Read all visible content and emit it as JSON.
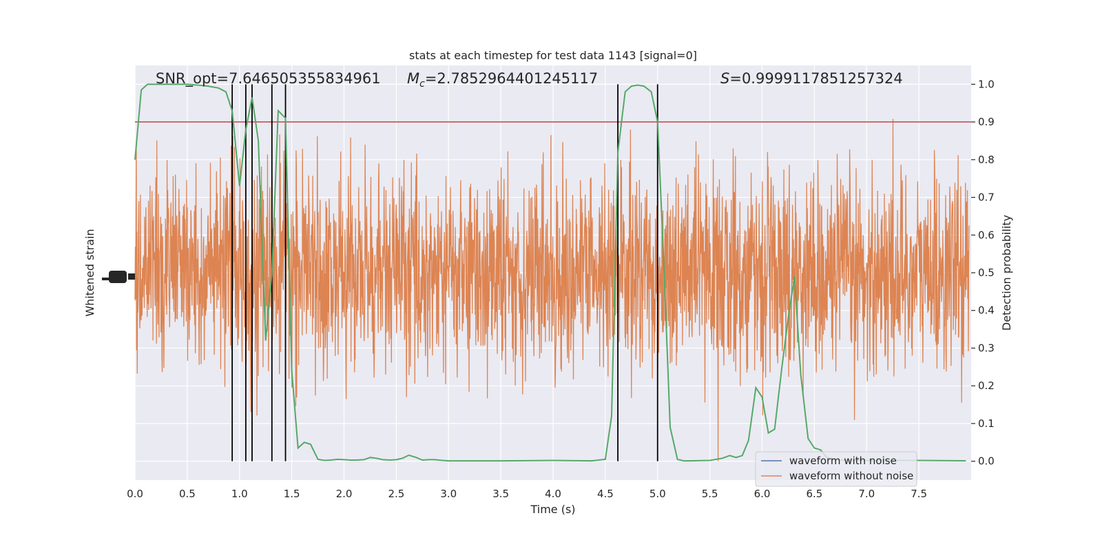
{
  "chart_data": {
    "type": "line",
    "title": "stats at each timestep for test data 1143 [signal=0]",
    "xlabel": "Time (s)",
    "ylabel_left": "Whitened strain",
    "ylabel_right": "Detection probability",
    "xlim": [
      0.0,
      8.0
    ],
    "ylim_right": [
      -0.05,
      1.05
    ],
    "x_ticks": [
      "0.0",
      "0.5",
      "1.0",
      "1.5",
      "2.0",
      "2.5",
      "3.0",
      "3.5",
      "4.0",
      "4.5",
      "5.0",
      "5.5",
      "6.0",
      "6.5",
      "7.0",
      "7.5"
    ],
    "y_ticks_right": [
      "0.0",
      "0.1",
      "0.2",
      "0.3",
      "0.4",
      "0.5",
      "0.6",
      "0.7",
      "0.8",
      "0.9",
      "1.0"
    ],
    "annotations": {
      "snr": "SNR_opt=7.646505355834961",
      "mc_symbol": "M",
      "mc_sub": "c",
      "mc_value": "=2.7852964401245117",
      "s_symbol": "S",
      "s_value": "=0.9999117851257324"
    },
    "threshold": {
      "value": 0.9,
      "color": "#c44e52"
    },
    "event_lines_x": [
      0.93,
      1.06,
      1.12,
      1.31,
      1.44,
      4.62,
      5.0
    ],
    "colors": {
      "background": "#eaeaf2",
      "grid": "#ffffff",
      "waveform_with_noise": "#4c72b0",
      "waveform_without_noise": "#dd8452",
      "probability": "#55a868",
      "event_line": "#000000"
    },
    "legend": {
      "placement": "lower-right",
      "entries": [
        "waveform with noise",
        "waveform without noise"
      ]
    },
    "probability_series": {
      "name": "detection probability",
      "x": [
        0.0,
        0.06,
        0.12,
        0.2,
        0.3,
        0.4,
        0.5,
        0.6,
        0.7,
        0.8,
        0.87,
        0.93,
        1.0,
        1.06,
        1.12,
        1.18,
        1.25,
        1.31,
        1.37,
        1.44,
        1.5,
        1.56,
        1.62,
        1.68,
        1.75,
        1.81,
        1.87,
        1.94,
        2.0,
        2.06,
        2.12,
        2.19,
        2.25,
        2.31,
        2.37,
        2.44,
        2.5,
        2.56,
        2.62,
        2.69,
        2.75,
        2.81,
        2.87,
        2.94,
        3.0,
        3.5,
        4.0,
        4.37,
        4.5,
        4.56,
        4.62,
        4.69,
        4.75,
        4.81,
        4.87,
        4.94,
        5.0,
        5.06,
        5.12,
        5.19,
        5.25,
        5.31,
        5.5,
        5.62,
        5.69,
        5.75,
        5.81,
        5.87,
        5.94,
        6.0,
        6.06,
        6.12,
        6.19,
        6.25,
        6.31,
        6.37,
        6.44,
        6.5,
        6.56,
        6.62,
        6.69,
        6.75,
        7.0,
        7.5,
        7.95
      ],
      "y": [
        0.8,
        0.985,
        1.0,
        1.0,
        1.0,
        1.0,
        1.0,
        0.998,
        0.995,
        0.99,
        0.98,
        0.93,
        0.73,
        0.88,
        0.965,
        0.85,
        0.32,
        0.5,
        0.93,
        0.91,
        0.24,
        0.035,
        0.05,
        0.045,
        0.005,
        0.002,
        0.003,
        0.005,
        0.004,
        0.003,
        0.003,
        0.004,
        0.01,
        0.008,
        0.004,
        0.003,
        0.004,
        0.008,
        0.016,
        0.01,
        0.003,
        0.004,
        0.004,
        0.002,
        0.001,
        0.001,
        0.002,
        0.001,
        0.005,
        0.12,
        0.82,
        0.98,
        0.995,
        0.998,
        0.995,
        0.98,
        0.9,
        0.52,
        0.09,
        0.005,
        0.001,
        0.001,
        0.002,
        0.008,
        0.015,
        0.01,
        0.015,
        0.055,
        0.195,
        0.17,
        0.075,
        0.085,
        0.25,
        0.38,
        0.49,
        0.23,
        0.06,
        0.035,
        0.03,
        0.01,
        0.005,
        0.003,
        0.002,
        0.002,
        0.001
      ]
    }
  }
}
